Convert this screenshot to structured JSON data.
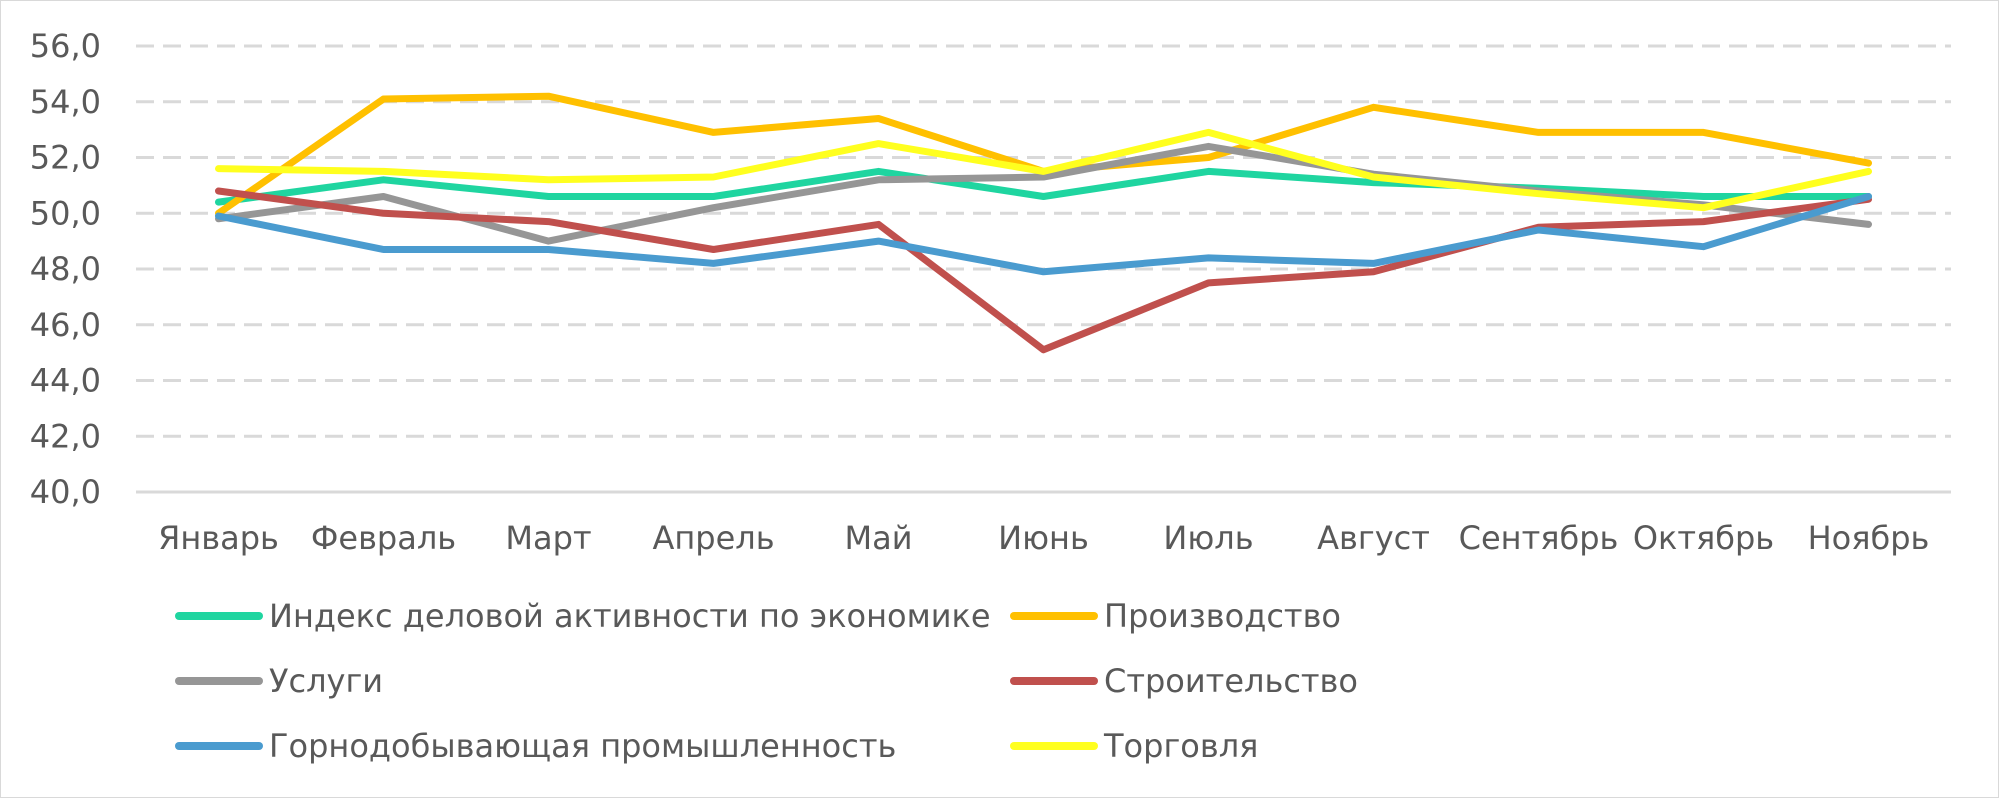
{
  "chart_data": {
    "type": "line",
    "title": "",
    "xlabel": "",
    "ylabel": "",
    "ylim": [
      40,
      56
    ],
    "yticks": [
      "40,0",
      "42,0",
      "44,0",
      "46,0",
      "48,0",
      "50,0",
      "52,0",
      "54,0",
      "56,0"
    ],
    "grid": true,
    "legend_position": "bottom",
    "categories": [
      "Январь",
      "Февраль",
      "Март",
      "Апрель",
      "Май",
      "Июнь",
      "Июль",
      "Август",
      "Сентябрь",
      "Октябрь",
      "Ноябрь"
    ],
    "series": [
      {
        "name": "Индекс деловой активности по экономике",
        "color": "#1fd5a0",
        "values": [
          50.4,
          51.2,
          50.6,
          50.6,
          51.5,
          50.6,
          51.5,
          51.1,
          50.9,
          50.6,
          50.6
        ]
      },
      {
        "name": "Производство",
        "color": "#ffc000",
        "values": [
          50.0,
          54.1,
          54.2,
          52.9,
          53.4,
          51.5,
          52.0,
          53.8,
          52.9,
          52.9,
          51.8
        ]
      },
      {
        "name": "Услуги",
        "color": "#969696",
        "values": [
          49.8,
          50.6,
          49.0,
          50.2,
          51.2,
          51.3,
          52.4,
          51.4,
          50.8,
          50.3,
          49.6
        ]
      },
      {
        "name": "Строительство",
        "color": "#c0504d",
        "values": [
          50.8,
          50.0,
          49.7,
          48.7,
          49.6,
          45.1,
          47.5,
          47.9,
          49.5,
          49.7,
          50.5
        ]
      },
      {
        "name": "Горнодобывающая промышленность",
        "color": "#4a9bcf",
        "values": [
          49.9,
          48.7,
          48.7,
          48.2,
          49.0,
          47.9,
          48.4,
          48.2,
          49.4,
          48.8,
          50.6
        ]
      },
      {
        "name": "Торговля",
        "color": "#ffff1f",
        "values": [
          51.6,
          51.5,
          51.2,
          51.3,
          52.5,
          51.5,
          52.9,
          51.3,
          50.7,
          50.2,
          51.5
        ]
      }
    ]
  }
}
